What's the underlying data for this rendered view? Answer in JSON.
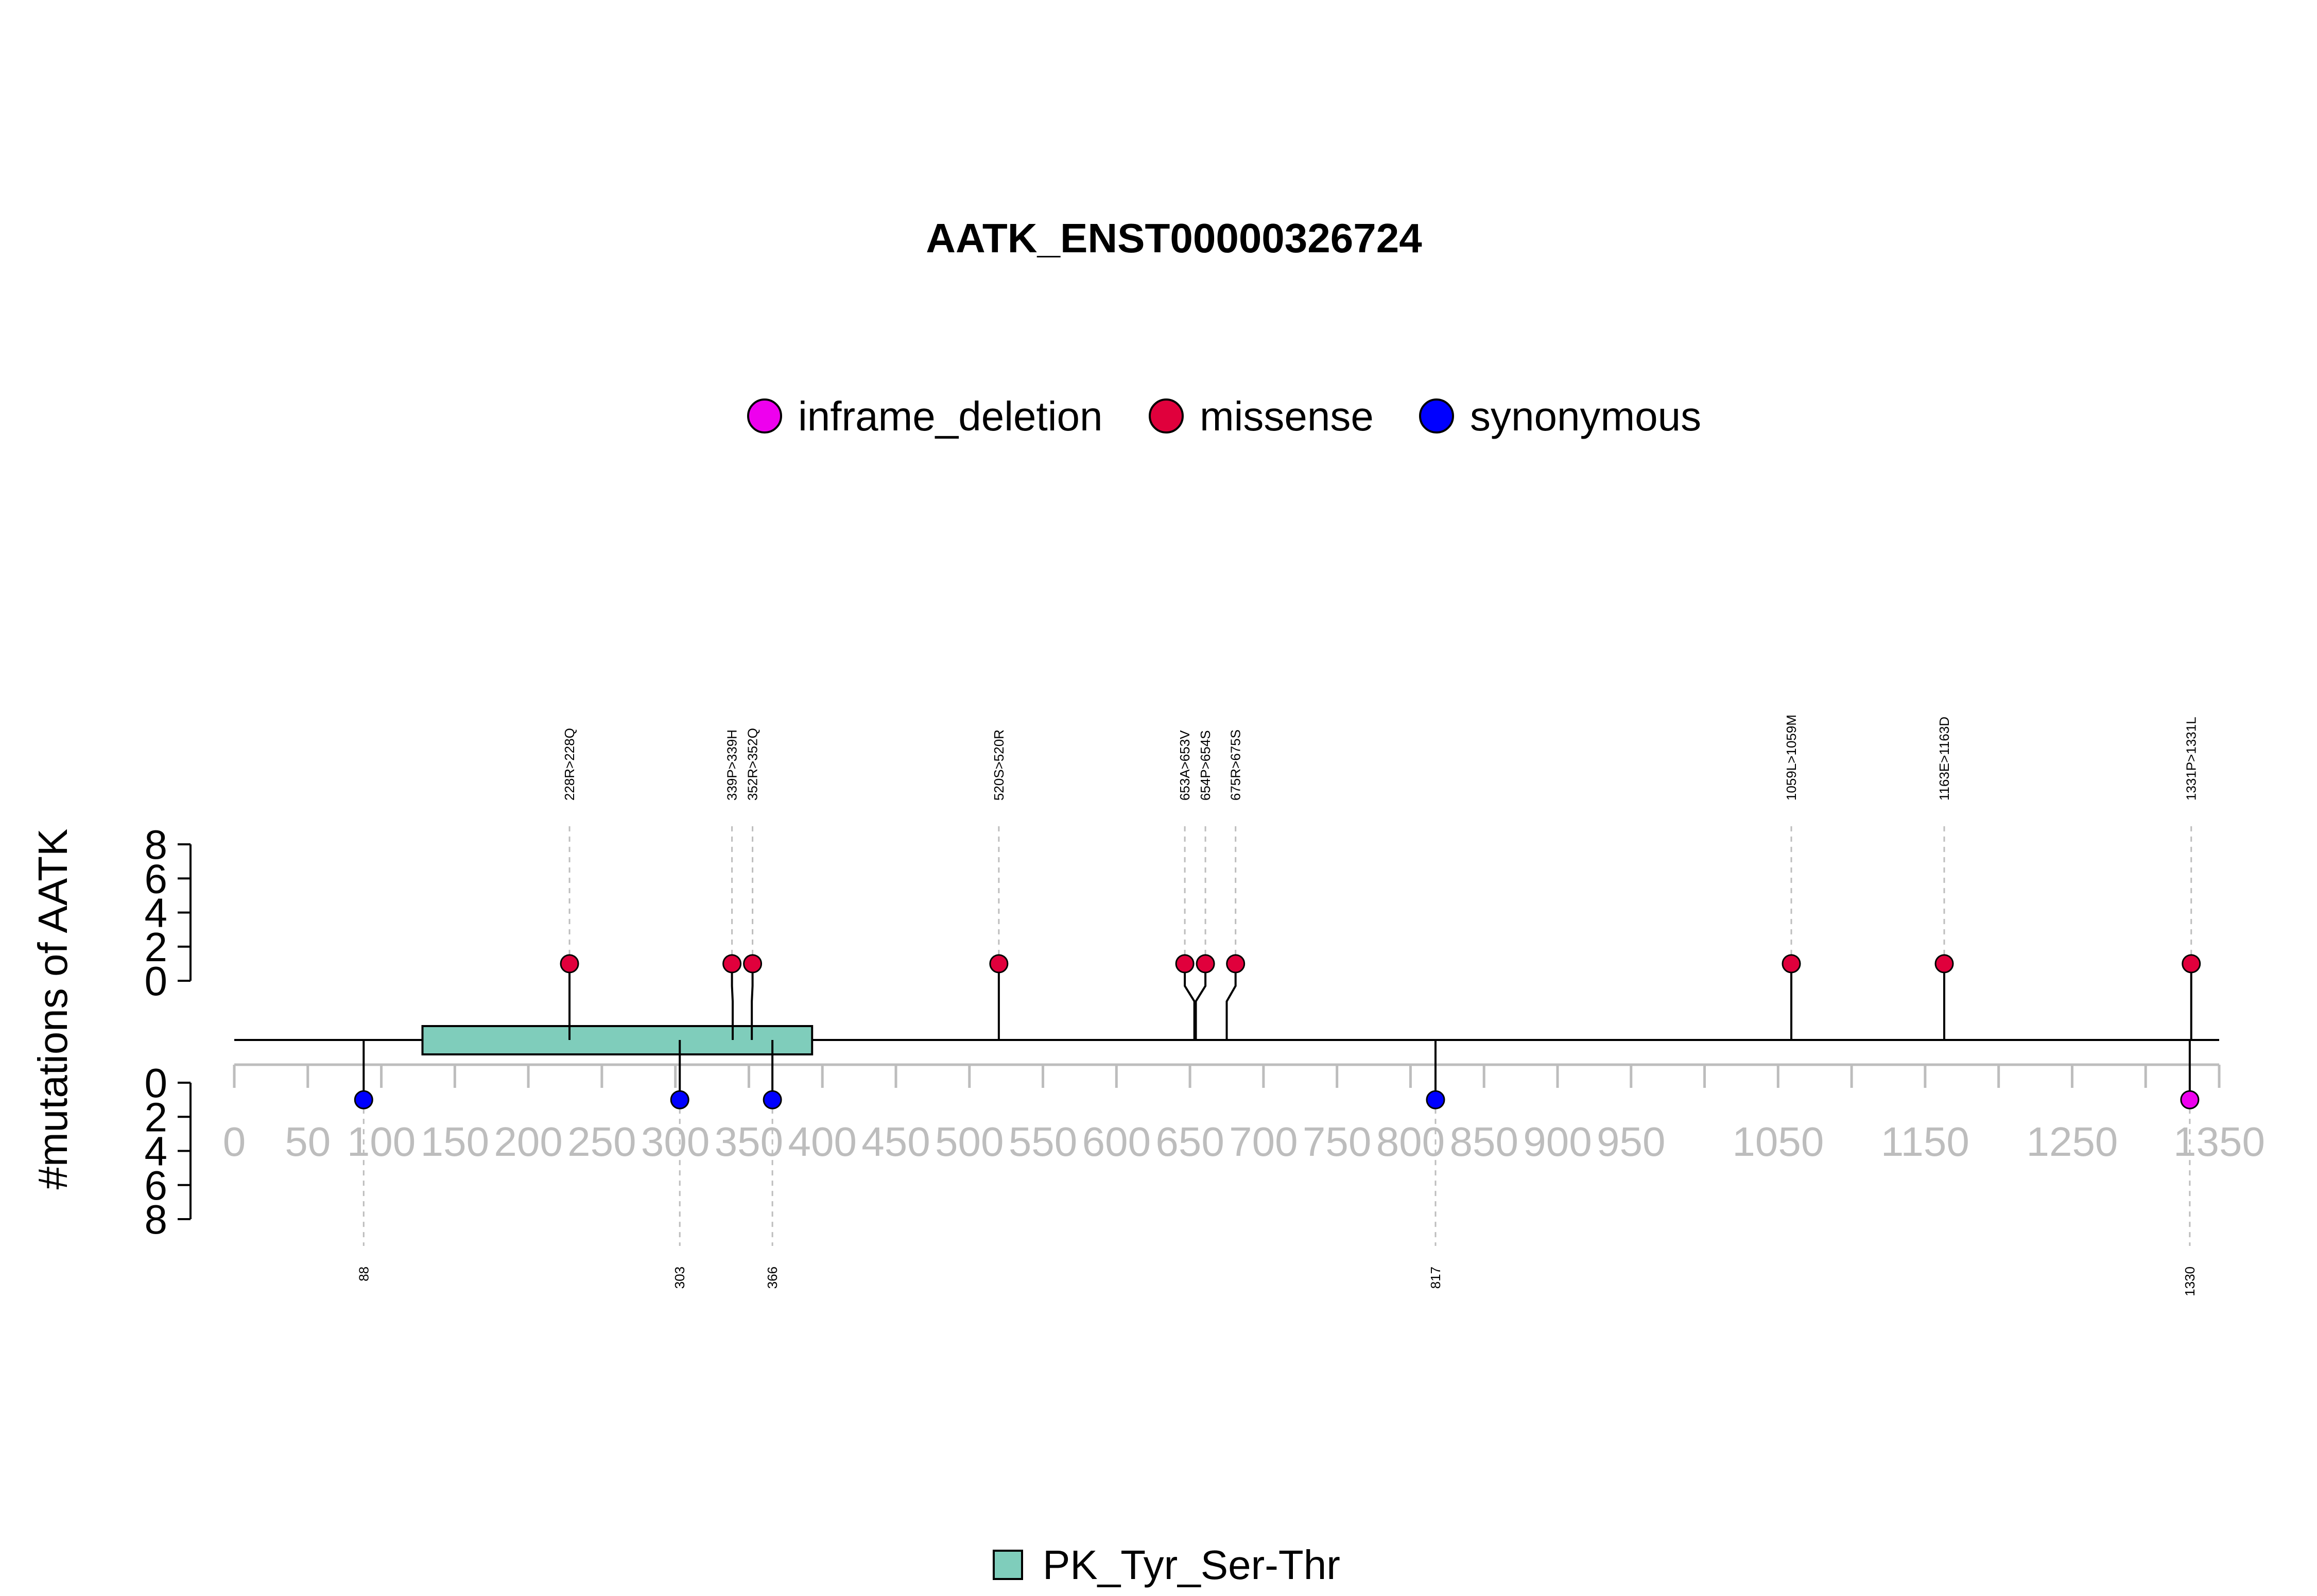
{
  "chart_data": {
    "type": "lollipop",
    "title": "AATK_ENST00000326724",
    "ylabel": "#mutations of AATK",
    "xlim": [
      0,
      1350
    ],
    "x_ticks": [
      "0",
      "50",
      "100",
      "150",
      "200",
      "250",
      "300",
      "350",
      "400",
      "450",
      "500",
      "550",
      "600",
      "650",
      "700",
      "750",
      "800",
      "850",
      "900",
      "950",
      "1050",
      "1150",
      "1250",
      "1350"
    ],
    "y_ticks_top": [
      "0",
      "2",
      "4",
      "6",
      "8"
    ],
    "y_ticks_bottom": [
      "0",
      "2",
      "4",
      "6",
      "8"
    ],
    "ylim": [
      0,
      8
    ],
    "legend": [
      {
        "name": "inframe_deletion",
        "color": "#ee00ee"
      },
      {
        "name": "missense",
        "color": "#e0003c"
      },
      {
        "name": "synonymous",
        "color": "#0000ff"
      }
    ],
    "domains": [
      {
        "name": "PK_Tyr_Ser-Thr",
        "start": 128,
        "end": 393,
        "color": "#7fcdbb"
      }
    ],
    "mutations_top": [
      {
        "label": "228R>228Q",
        "position": 228,
        "count": 1,
        "type": "missense"
      },
      {
        "label": "339P>339H",
        "position": 339,
        "count": 1,
        "type": "missense"
      },
      {
        "label": "352R>352Q",
        "position": 352,
        "count": 1,
        "type": "missense"
      },
      {
        "label": "520S>520R",
        "position": 520,
        "count": 1,
        "type": "missense"
      },
      {
        "label": "653A>653V",
        "position": 653,
        "count": 1,
        "type": "missense"
      },
      {
        "label": "654P>654S",
        "position": 654,
        "count": 1,
        "type": "missense"
      },
      {
        "label": "675R>675S",
        "position": 675,
        "count": 1,
        "type": "missense"
      },
      {
        "label": "1059L>1059M",
        "position": 1059,
        "count": 1,
        "type": "missense"
      },
      {
        "label": "1163E>1163D",
        "position": 1163,
        "count": 1,
        "type": "missense"
      },
      {
        "label": "1331P>1331L",
        "position": 1331,
        "count": 1,
        "type": "missense"
      }
    ],
    "mutations_bottom": [
      {
        "label": "88",
        "position": 88,
        "count": 1,
        "type": "synonymous"
      },
      {
        "label": "303",
        "position": 303,
        "count": 1,
        "type": "synonymous"
      },
      {
        "label": "366",
        "position": 366,
        "count": 1,
        "type": "synonymous"
      },
      {
        "label": "817",
        "position": 817,
        "count": 1,
        "type": "synonymous"
      },
      {
        "label": "1330",
        "position": 1330,
        "count": 1,
        "type": "inframe_deletion"
      }
    ]
  }
}
